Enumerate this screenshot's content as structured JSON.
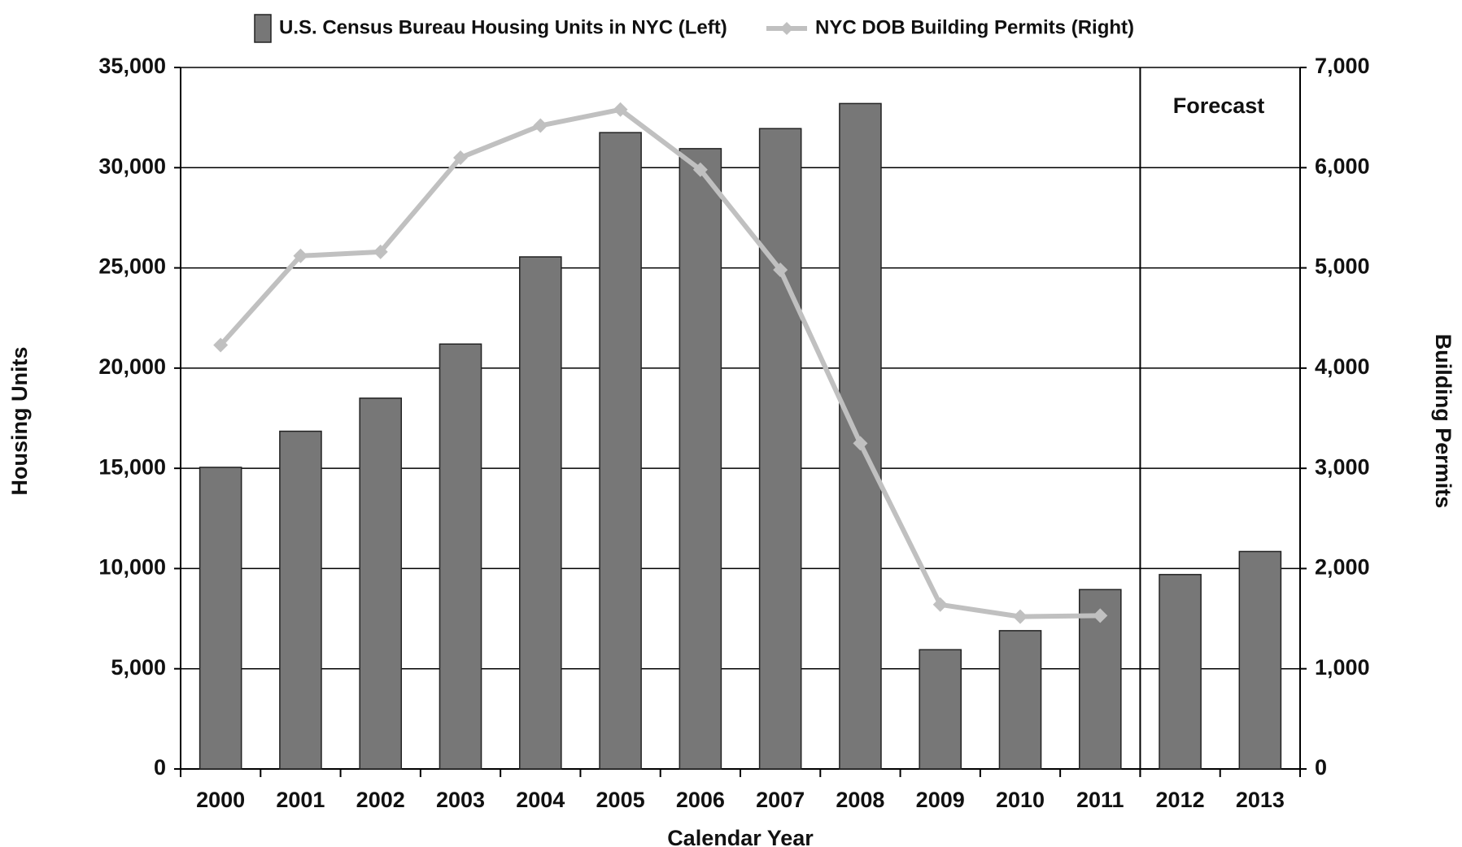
{
  "chart_data": {
    "type": "bar-line",
    "xlabel": "Calendar Year",
    "ylabel": "Housing Units",
    "y2label": "Building Permits",
    "annotation": "Forecast",
    "categories": [
      "2000",
      "2001",
      "2002",
      "2003",
      "2004",
      "2005",
      "2006",
      "2007",
      "2008",
      "2009",
      "2010",
      "2011",
      "2012",
      "2013"
    ],
    "series": [
      {
        "name": "U.S. Census Bureau Housing Units in NYC (Left)",
        "type": "bar",
        "color": "#777777",
        "values": [
          15050,
          16850,
          18500,
          21200,
          25550,
          31750,
          30950,
          31950,
          33200,
          5950,
          6900,
          8950,
          9700,
          10850
        ]
      },
      {
        "name": "NYC DOB Building Permits (Right)",
        "type": "line",
        "axis": "y2",
        "color": "#c0c0c0",
        "values": [
          4230,
          5120,
          5160,
          6100,
          6420,
          6580,
          5980,
          4980,
          3250,
          1640,
          1520,
          1530,
          null,
          null
        ]
      }
    ],
    "ylim": [
      0,
      35000
    ],
    "yticks": [
      0,
      {
        "value": 5000,
        "label": "5,000"
      },
      {
        "value": 10000,
        "label": "10,000"
      },
      {
        "value": 15000,
        "label": "15,000"
      },
      {
        "value": 20000,
        "label": "20,000"
      },
      {
        "value": 25000,
        "label": "25,000"
      },
      {
        "value": 30000,
        "label": "30,000"
      },
      {
        "value": 35000,
        "label": "35,000"
      }
    ],
    "y2lim": [
      0,
      7000
    ],
    "y2ticks": [
      0,
      {
        "value": 1000,
        "label": "1,000"
      },
      {
        "value": 2000,
        "label": "2,000"
      },
      {
        "value": 3000,
        "label": "3,000"
      },
      {
        "value": 4000,
        "label": "4,000"
      },
      {
        "value": 5000,
        "label": "5,000"
      },
      {
        "value": 6000,
        "label": "6,000"
      },
      {
        "value": 7000,
        "label": "7,000"
      }
    ],
    "grid": true
  }
}
